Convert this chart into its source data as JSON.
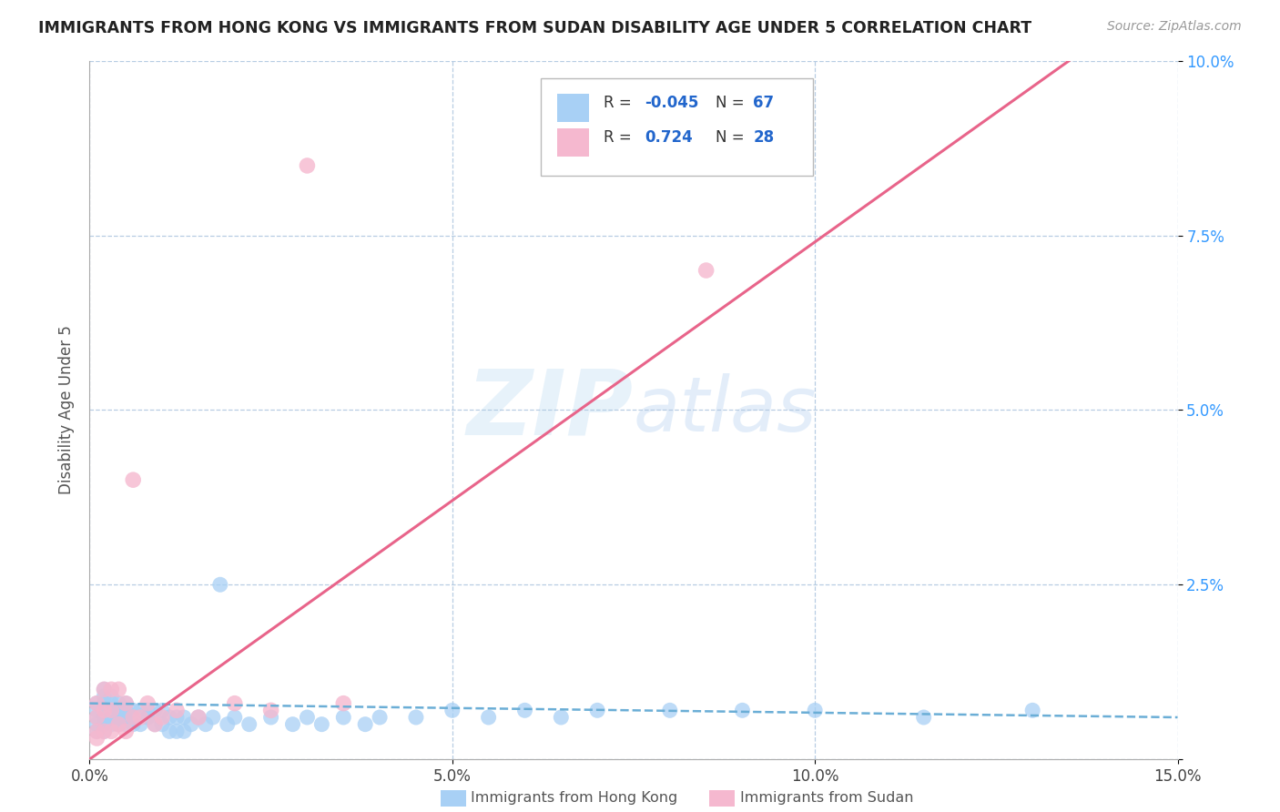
{
  "title": "IMMIGRANTS FROM HONG KONG VS IMMIGRANTS FROM SUDAN DISABILITY AGE UNDER 5 CORRELATION CHART",
  "source": "Source: ZipAtlas.com",
  "xlabel_label": "Immigrants from Hong Kong",
  "xlabel_label2": "Immigrants from Sudan",
  "ylabel": "Disability Age Under 5",
  "xlim": [
    0,
    0.15
  ],
  "ylim": [
    0,
    0.1
  ],
  "xtick_vals": [
    0.0,
    0.05,
    0.1,
    0.15
  ],
  "ytick_vals": [
    0.0,
    0.025,
    0.05,
    0.075,
    0.1
  ],
  "ytick_labels": [
    "",
    "2.5%",
    "5.0%",
    "7.5%",
    "10.0%"
  ],
  "xtick_labels": [
    "0.0%",
    "5.0%",
    "10.0%",
    "15.0%"
  ],
  "legend_R1": "-0.045",
  "legend_N1": "67",
  "legend_R2": "0.724",
  "legend_N2": "28",
  "color_hk": "#a8d0f5",
  "color_sudan": "#f5b8cf",
  "color_hk_line": "#6baed6",
  "color_sudan_line": "#e8648a",
  "watermark": "ZIPatlas",
  "hk_x": [
    0.001,
    0.001,
    0.001,
    0.001,
    0.001,
    0.002,
    0.002,
    0.002,
    0.002,
    0.002,
    0.002,
    0.003,
    0.003,
    0.003,
    0.003,
    0.003,
    0.004,
    0.004,
    0.004,
    0.004,
    0.005,
    0.005,
    0.005,
    0.005,
    0.006,
    0.006,
    0.006,
    0.007,
    0.007,
    0.008,
    0.008,
    0.009,
    0.009,
    0.01,
    0.01,
    0.011,
    0.011,
    0.012,
    0.012,
    0.013,
    0.013,
    0.014,
    0.015,
    0.016,
    0.017,
    0.018,
    0.019,
    0.02,
    0.022,
    0.025,
    0.028,
    0.03,
    0.032,
    0.035,
    0.038,
    0.04,
    0.045,
    0.05,
    0.055,
    0.06,
    0.065,
    0.07,
    0.08,
    0.09,
    0.1,
    0.115,
    0.13
  ],
  "hk_y": [
    0.008,
    0.007,
    0.006,
    0.005,
    0.004,
    0.01,
    0.009,
    0.008,
    0.006,
    0.005,
    0.004,
    0.009,
    0.008,
    0.007,
    0.006,
    0.005,
    0.008,
    0.007,
    0.006,
    0.005,
    0.008,
    0.007,
    0.006,
    0.005,
    0.007,
    0.006,
    0.005,
    0.007,
    0.005,
    0.007,
    0.006,
    0.007,
    0.005,
    0.007,
    0.005,
    0.006,
    0.004,
    0.006,
    0.004,
    0.006,
    0.004,
    0.005,
    0.006,
    0.005,
    0.006,
    0.025,
    0.005,
    0.006,
    0.005,
    0.006,
    0.005,
    0.006,
    0.005,
    0.006,
    0.005,
    0.006,
    0.006,
    0.007,
    0.006,
    0.007,
    0.006,
    0.007,
    0.007,
    0.007,
    0.007,
    0.006,
    0.007
  ],
  "sudan_x": [
    0.001,
    0.001,
    0.001,
    0.001,
    0.002,
    0.002,
    0.002,
    0.003,
    0.003,
    0.003,
    0.004,
    0.004,
    0.005,
    0.005,
    0.006,
    0.006,
    0.007,
    0.008,
    0.009,
    0.01,
    0.012,
    0.015,
    0.02,
    0.025,
    0.03,
    0.035,
    0.08,
    0.085
  ],
  "sudan_y": [
    0.008,
    0.006,
    0.004,
    0.003,
    0.01,
    0.007,
    0.004,
    0.01,
    0.007,
    0.004,
    0.01,
    0.005,
    0.008,
    0.004,
    0.04,
    0.006,
    0.006,
    0.008,
    0.005,
    0.006,
    0.007,
    0.006,
    0.008,
    0.007,
    0.085,
    0.008,
    0.093,
    0.07
  ],
  "sudan_trend_x": [
    0.0,
    0.135
  ],
  "sudan_trend_y": [
    0.0,
    0.1
  ],
  "hk_trend_x": [
    0.0,
    0.15
  ],
  "hk_trend_y": [
    0.008,
    0.006
  ]
}
